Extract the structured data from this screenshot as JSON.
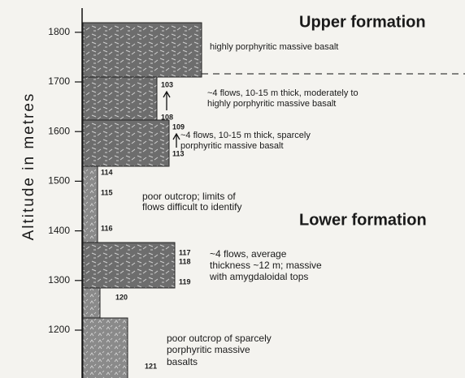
{
  "axis_title": "Altitude in metres",
  "ticks": [
    1200,
    1300,
    1400,
    1500,
    1600,
    1700,
    1800
  ],
  "formations": {
    "upper": "Upper formation",
    "lower": "Lower formation"
  },
  "descriptions": {
    "unit1": [
      "highly porphyritic massive basalt"
    ],
    "unit2": [
      "~4 flows, 10-15 m thick, moderately to",
      "highly porphyritic massive basalt"
    ],
    "unit3": [
      "~4 flows, 10-15 m thick, sparcely",
      "porphyritic massive basalt"
    ],
    "unit4": [
      "poor outcrop; limits of",
      "flows difficult to identify"
    ],
    "unit5": [
      "~4 flows, average",
      "thickness ~12 m; massive",
      "with amygdaloidal tops"
    ],
    "unit6": [
      "poor outcrop of sparcely",
      "porphyritic massive",
      "basalts"
    ]
  },
  "samples": [
    "103",
    "108",
    "109",
    "113",
    "114",
    "115",
    "116",
    "117",
    "118",
    "119",
    "120",
    "121"
  ]
}
